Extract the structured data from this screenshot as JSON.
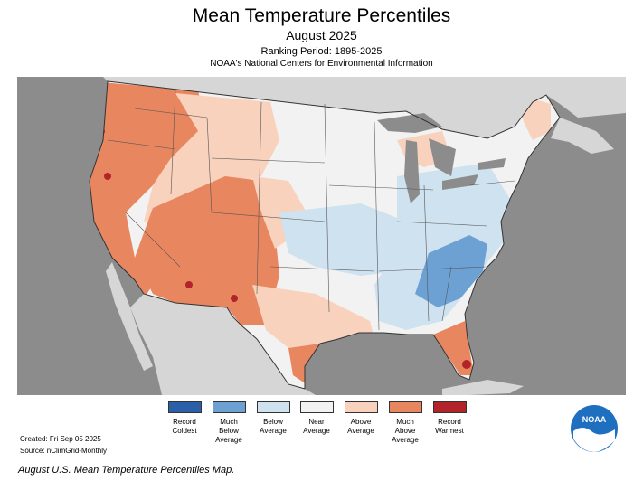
{
  "header": {
    "title": "Mean Temperature Percentiles",
    "subtitle": "August 2025",
    "ranking": "Ranking Period: 1895-2025",
    "agency": "NOAA's National Centers for Environmental Information"
  },
  "legend": [
    {
      "label": "Record\nColdest",
      "color": "#2b5fa8"
    },
    {
      "label": "Much\nBelow\nAverage",
      "color": "#6da0d3"
    },
    {
      "label": "Below\nAverage",
      "color": "#cfe2f0"
    },
    {
      "label": "Near\nAverage",
      "color": "#f2f2f2"
    },
    {
      "label": "Above\nAverage",
      "color": "#f8d2bc"
    },
    {
      "label": "Much\nAbove\nAverage",
      "color": "#e8875f"
    },
    {
      "label": "Record\nWarmest",
      "color": "#b2232a"
    }
  ],
  "footer": {
    "created": "Created: Fri Sep 05 2025",
    "source": "Source: nClimGrid-Monthly",
    "caption": "August U.S. Mean Temperature Percentiles Map."
  },
  "logo": {
    "text": "NOAA"
  },
  "colors": {
    "water": "#8c8c8c",
    "land_outside": "#d6d6d6"
  }
}
